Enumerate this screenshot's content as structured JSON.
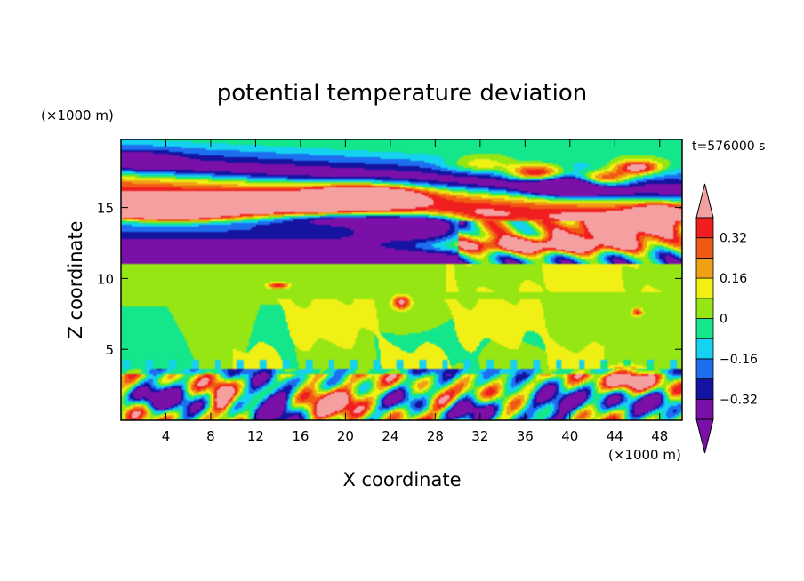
{
  "chart_data": {
    "type": "heatmap",
    "title": "potential temperature deviation",
    "xlabel": "X coordinate",
    "ylabel": "Z coordinate",
    "x_unit": "(×1000 m)",
    "y_unit": "(×1000 m)",
    "time_label": "t=576000 s",
    "xlim": [
      0,
      50
    ],
    "ylim": [
      0,
      19.8
    ],
    "x_ticks": [
      4,
      8,
      12,
      16,
      20,
      24,
      28,
      32,
      36,
      40,
      44,
      48
    ],
    "y_ticks": [
      5,
      10,
      15
    ],
    "x_tick_labels": [
      "4",
      "8",
      "12",
      "16",
      "20",
      "24",
      "28",
      "32",
      "36",
      "40",
      "44",
      "48"
    ],
    "y_tick_labels": [
      "5",
      "10",
      "15"
    ],
    "colorbar": {
      "levels": [
        -0.4,
        -0.32,
        -0.24,
        -0.16,
        -0.08,
        0,
        0.08,
        0.16,
        0.24,
        0.32,
        0.4
      ],
      "labels": [
        {
          "value": -0.32,
          "text": "−0.32"
        },
        {
          "value": -0.16,
          "text": "−0.16"
        },
        {
          "value": 0,
          "text": "0"
        },
        {
          "value": 0.16,
          "text": "0.16"
        },
        {
          "value": 0.32,
          "text": "0.32"
        }
      ],
      "colors": [
        "#7a10a8",
        "#1414a0",
        "#1e6ef0",
        "#14d2f0",
        "#14e68c",
        "#96e614",
        "#f0f014",
        "#f0a014",
        "#f05a14",
        "#f01e1e"
      ],
      "under_color": "#7a10a8",
      "over_color": "#f5a0a0",
      "extend": "both"
    },
    "background_color": "#14e68c",
    "layers": [
      {
        "name": "upper",
        "z": [
          11,
          19.8
        ],
        "bands": [
          {
            "zc": 19.3,
            "dz": 0.5,
            "v": 0.0
          },
          {
            "zc": 18.4,
            "dz": 0.9,
            "v": -0.08
          },
          {
            "zc": 17.2,
            "dz": 1.1,
            "v": -0.45
          },
          {
            "zc": 15.8,
            "dz": 0.8,
            "v": 0.3
          },
          {
            "zc": 14.8,
            "dz": 0.9,
            "v": 0.45
          },
          {
            "zc": 14.0,
            "dz": 0.5,
            "v": 0.1
          },
          {
            "zc": 13.4,
            "dz": 0.6,
            "v": -0.2
          },
          {
            "zc": 12.6,
            "dz": 0.7,
            "v": -0.36
          },
          {
            "zc": 11.5,
            "dz": 0.5,
            "v": -0.45
          }
        ]
      },
      {
        "name": "middle",
        "z": [
          3.6,
          11
        ],
        "base_value": 0.0,
        "patch_value": 0.08
      },
      {
        "name": "lower",
        "z": [
          0,
          3.6
        ],
        "base_value": 0.0
      }
    ],
    "features": [
      {
        "x": 12,
        "z": 15.2,
        "sx": 9.0,
        "sz": 0.7,
        "v": 0.7
      },
      {
        "x": 4,
        "z": 14.6,
        "sx": 5.0,
        "sz": 0.6,
        "v": 0.6
      },
      {
        "x": 22,
        "z": 16.0,
        "sx": 5.0,
        "sz": 0.7,
        "v": 0.6
      },
      {
        "x": 19,
        "z": 14.2,
        "sx": 8.0,
        "sz": 0.5,
        "v": -0.5
      },
      {
        "x": 28,
        "z": 13.8,
        "sx": 6.0,
        "sz": 0.8,
        "v": -0.55
      },
      {
        "x": 38,
        "z": 12.3,
        "sx": 9.0,
        "sz": 0.6,
        "v": 0.75
      },
      {
        "x": 44,
        "z": 13.4,
        "sx": 5.0,
        "sz": 0.9,
        "v": 0.65
      },
      {
        "x": 32,
        "z": 13.6,
        "sx": 3.0,
        "sz": 1.0,
        "v": 0.45
      },
      {
        "x": 48,
        "z": 14.4,
        "sx": 2.5,
        "sz": 0.8,
        "v": 0.6
      },
      {
        "x": 37,
        "z": 17.4,
        "sx": 2.5,
        "sz": 0.6,
        "v": 0.7
      },
      {
        "x": 43,
        "z": 17.0,
        "sx": 2.5,
        "sz": 0.6,
        "v": 0.7
      },
      {
        "x": 46,
        "z": 17.8,
        "sx": 2.0,
        "sz": 0.5,
        "v": 0.6
      },
      {
        "x": 40,
        "z": 16.5,
        "sx": 4.0,
        "sz": 0.8,
        "v": -0.5
      },
      {
        "x": 32,
        "z": 18.0,
        "sx": 3.0,
        "sz": 0.6,
        "v": 0.3
      },
      {
        "x": 2,
        "z": 18.4,
        "sx": 3.0,
        "sz": 0.6,
        "v": -0.16
      },
      {
        "x": 14,
        "z": 9.5,
        "sx": 1.0,
        "sz": 0.2,
        "v": 0.4
      },
      {
        "x": 25,
        "z": 8.3,
        "sx": 0.8,
        "sz": 0.5,
        "v": 0.45
      },
      {
        "x": 46,
        "z": 7.6,
        "sx": 0.5,
        "sz": 0.3,
        "v": 0.35
      },
      {
        "x": 20,
        "z": 1.5,
        "sx": 2.5,
        "sz": 1.0,
        "v": 0.7
      },
      {
        "x": 28.5,
        "z": 1.3,
        "sx": 1.5,
        "sz": 0.8,
        "v": 0.55
      },
      {
        "x": 9,
        "z": 1.5,
        "sx": 0.8,
        "sz": 1.2,
        "v": 0.4
      },
      {
        "x": 45,
        "z": 2.8,
        "sx": 2.0,
        "sz": 0.8,
        "v": 0.7
      },
      {
        "x": 3,
        "z": 1.5,
        "sx": 2.0,
        "sz": 0.8,
        "v": -0.45
      },
      {
        "x": 14,
        "z": 1.2,
        "sx": 2.0,
        "sz": 1.0,
        "v": -0.45
      },
      {
        "x": 25,
        "z": 1.6,
        "sx": 2.0,
        "sz": 1.0,
        "v": -0.4
      },
      {
        "x": 32,
        "z": 1.0,
        "sx": 2.0,
        "sz": 0.8,
        "v": -0.45
      },
      {
        "x": 40,
        "z": 1.2,
        "sx": 2.5,
        "sz": 0.9,
        "v": -0.5
      },
      {
        "x": 48,
        "z": 1.5,
        "sx": 1.5,
        "sz": 0.8,
        "v": -0.45
      },
      {
        "x": 36,
        "z": 2.5,
        "sx": 1.5,
        "sz": 0.6,
        "v": 0.3
      }
    ]
  }
}
